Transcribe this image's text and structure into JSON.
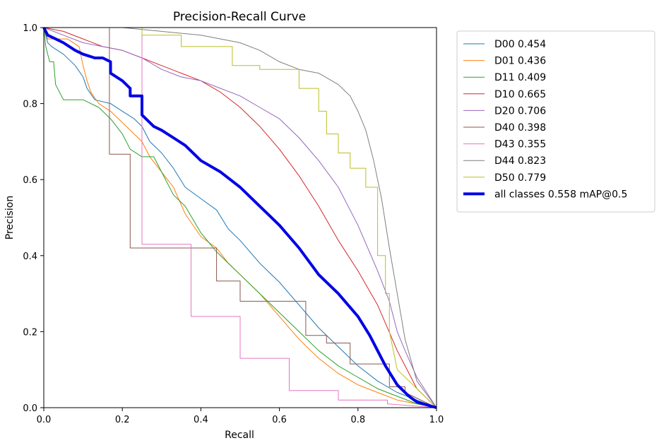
{
  "chart_data": {
    "type": "line",
    "title": "Precision-Recall Curve",
    "xlabel": "Recall",
    "ylabel": "Precision",
    "xlim": [
      0,
      1
    ],
    "ylim": [
      0,
      1
    ],
    "xticks": [
      "0.0",
      "0.2",
      "0.4",
      "0.6",
      "0.8",
      "1.0"
    ],
    "yticks": [
      "0.0",
      "0.2",
      "0.4",
      "0.6",
      "0.8",
      "1.0"
    ],
    "grid": false,
    "legend_position": "outside-right",
    "series": [
      {
        "name": "D00",
        "label": "D00 0.454",
        "color": "#1f77b4",
        "width": 1,
        "x": [
          0,
          0.01,
          0.02,
          0.05,
          0.08,
          0.1,
          0.11,
          0.13,
          0.17,
          0.2,
          0.23,
          0.25,
          0.27,
          0.3,
          0.33,
          0.36,
          0.4,
          0.44,
          0.47,
          0.5,
          0.55,
          0.6,
          0.65,
          0.7,
          0.75,
          0.8,
          0.85,
          0.9,
          0.95,
          1.0
        ],
        "y": [
          1.0,
          0.96,
          0.95,
          0.93,
          0.9,
          0.87,
          0.84,
          0.81,
          0.8,
          0.78,
          0.76,
          0.74,
          0.7,
          0.67,
          0.63,
          0.58,
          0.55,
          0.52,
          0.47,
          0.44,
          0.38,
          0.33,
          0.27,
          0.21,
          0.16,
          0.11,
          0.07,
          0.04,
          0.02,
          0.0
        ]
      },
      {
        "name": "D01",
        "label": "D01 0.436",
        "color": "#ff7f0e",
        "width": 1,
        "x": [
          0,
          0.01,
          0.03,
          0.06,
          0.09,
          0.1,
          0.11,
          0.12,
          0.14,
          0.17,
          0.2,
          0.23,
          0.25,
          0.27,
          0.3,
          0.33,
          0.36,
          0.4,
          0.44,
          0.47,
          0.5,
          0.55,
          0.6,
          0.65,
          0.7,
          0.75,
          0.8,
          0.85,
          0.9,
          0.95,
          1.0
        ],
        "y": [
          1.0,
          0.97,
          0.97,
          0.97,
          0.95,
          0.9,
          0.86,
          0.83,
          0.8,
          0.78,
          0.75,
          0.72,
          0.7,
          0.66,
          0.62,
          0.58,
          0.51,
          0.45,
          0.42,
          0.38,
          0.35,
          0.3,
          0.24,
          0.18,
          0.13,
          0.09,
          0.06,
          0.04,
          0.02,
          0.01,
          0.0
        ]
      },
      {
        "name": "D11",
        "label": "D11 0.409",
        "color": "#2ca02c",
        "width": 1,
        "x": [
          0,
          0.005,
          0.015,
          0.025,
          0.03,
          0.05,
          0.1,
          0.14,
          0.17,
          0.2,
          0.22,
          0.25,
          0.28,
          0.3,
          0.33,
          0.36,
          0.4,
          0.44,
          0.47,
          0.5,
          0.55,
          0.6,
          0.65,
          0.7,
          0.75,
          0.8,
          0.85,
          0.9,
          0.95,
          1.0
        ],
        "y": [
          1.0,
          0.95,
          0.91,
          0.91,
          0.85,
          0.81,
          0.81,
          0.79,
          0.76,
          0.72,
          0.68,
          0.66,
          0.66,
          0.62,
          0.56,
          0.53,
          0.46,
          0.41,
          0.38,
          0.35,
          0.3,
          0.25,
          0.2,
          0.15,
          0.11,
          0.08,
          0.05,
          0.03,
          0.01,
          0.0
        ]
      },
      {
        "name": "D10",
        "label": "D10 0.665",
        "color": "#d62728",
        "width": 1,
        "x": [
          0,
          0.05,
          0.1,
          0.15,
          0.2,
          0.25,
          0.3,
          0.35,
          0.4,
          0.45,
          0.5,
          0.55,
          0.6,
          0.65,
          0.7,
          0.75,
          0.8,
          0.85,
          0.9,
          0.95,
          1.0
        ],
        "y": [
          1.0,
          0.99,
          0.97,
          0.95,
          0.94,
          0.92,
          0.9,
          0.88,
          0.86,
          0.83,
          0.79,
          0.74,
          0.68,
          0.61,
          0.53,
          0.44,
          0.36,
          0.27,
          0.15,
          0.05,
          0.0
        ]
      },
      {
        "name": "D20",
        "label": "D20 0.706",
        "color": "#9467bd",
        "width": 1,
        "x": [
          0,
          0.05,
          0.1,
          0.15,
          0.2,
          0.25,
          0.3,
          0.35,
          0.4,
          0.45,
          0.5,
          0.55,
          0.6,
          0.65,
          0.7,
          0.75,
          0.8,
          0.85,
          0.88,
          0.9,
          0.92,
          0.95,
          1.0
        ],
        "y": [
          1.0,
          0.98,
          0.96,
          0.95,
          0.94,
          0.92,
          0.89,
          0.87,
          0.86,
          0.84,
          0.82,
          0.79,
          0.76,
          0.71,
          0.65,
          0.58,
          0.48,
          0.36,
          0.28,
          0.2,
          0.15,
          0.08,
          0.0
        ]
      },
      {
        "name": "D40",
        "label": "D40 0.398",
        "color": "#8c564b",
        "width": 1,
        "x": [
          0,
          0.167,
          0.167,
          0.22,
          0.22,
          0.44,
          0.44,
          0.5,
          0.5,
          0.667,
          0.667,
          0.72,
          0.72,
          0.78,
          0.78,
          0.88,
          0.88,
          0.92,
          0.92,
          1.0
        ],
        "y": [
          1.0,
          1.0,
          0.667,
          0.667,
          0.42,
          0.42,
          0.333,
          0.333,
          0.28,
          0.28,
          0.19,
          0.19,
          0.17,
          0.17,
          0.115,
          0.115,
          0.055,
          0.055,
          0.04,
          0.0
        ]
      },
      {
        "name": "D43",
        "label": "D43 0.355",
        "color": "#e377c2",
        "width": 1,
        "x": [
          0,
          0.25,
          0.25,
          0.375,
          0.375,
          0.5,
          0.5,
          0.625,
          0.625,
          0.75,
          0.75,
          0.875,
          0.875,
          1.0
        ],
        "y": [
          1.0,
          1.0,
          0.43,
          0.43,
          0.24,
          0.24,
          0.13,
          0.13,
          0.045,
          0.045,
          0.02,
          0.02,
          0.01,
          0.0
        ]
      },
      {
        "name": "D44",
        "label": "D44 0.823",
        "color": "#7f7f7f",
        "width": 1,
        "x": [
          0,
          0.1,
          0.2,
          0.3,
          0.4,
          0.5,
          0.55,
          0.6,
          0.65,
          0.7,
          0.75,
          0.78,
          0.8,
          0.82,
          0.84,
          0.86,
          0.88,
          0.9,
          0.92,
          0.95,
          1.0
        ],
        "y": [
          1.0,
          1.0,
          1.0,
          0.99,
          0.98,
          0.96,
          0.94,
          0.91,
          0.89,
          0.88,
          0.85,
          0.82,
          0.78,
          0.73,
          0.65,
          0.55,
          0.42,
          0.3,
          0.18,
          0.07,
          0.0
        ]
      },
      {
        "name": "D50",
        "label": "D50 0.779",
        "color": "#bcbd22",
        "width": 1,
        "x": [
          0,
          0.25,
          0.25,
          0.35,
          0.35,
          0.48,
          0.48,
          0.55,
          0.55,
          0.65,
          0.65,
          0.7,
          0.7,
          0.72,
          0.72,
          0.75,
          0.75,
          0.78,
          0.78,
          0.82,
          0.82,
          0.85,
          0.85,
          0.87,
          0.87,
          0.88,
          0.88,
          0.9,
          1.0
        ],
        "y": [
          1.0,
          1.0,
          0.98,
          0.98,
          0.95,
          0.95,
          0.9,
          0.9,
          0.89,
          0.89,
          0.84,
          0.84,
          0.78,
          0.78,
          0.72,
          0.72,
          0.67,
          0.67,
          0.63,
          0.63,
          0.58,
          0.58,
          0.4,
          0.4,
          0.3,
          0.3,
          0.2,
          0.1,
          0.0
        ]
      },
      {
        "name": "all classes",
        "label": "all classes 0.558 mAP@0.5",
        "color": "#0000e6",
        "width": 4,
        "x": [
          0,
          0.01,
          0.03,
          0.05,
          0.08,
          0.1,
          0.13,
          0.15,
          0.17,
          0.17,
          0.2,
          0.22,
          0.22,
          0.25,
          0.25,
          0.28,
          0.3,
          0.33,
          0.36,
          0.38,
          0.4,
          0.45,
          0.5,
          0.55,
          0.6,
          0.65,
          0.7,
          0.75,
          0.8,
          0.83,
          0.85,
          0.87,
          0.9,
          0.93,
          0.95,
          1.0
        ],
        "y": [
          1.0,
          0.98,
          0.97,
          0.96,
          0.94,
          0.93,
          0.92,
          0.92,
          0.91,
          0.88,
          0.86,
          0.84,
          0.82,
          0.82,
          0.77,
          0.74,
          0.73,
          0.71,
          0.69,
          0.67,
          0.65,
          0.62,
          0.58,
          0.53,
          0.48,
          0.42,
          0.35,
          0.3,
          0.24,
          0.19,
          0.15,
          0.11,
          0.06,
          0.03,
          0.015,
          0.0
        ]
      }
    ]
  }
}
